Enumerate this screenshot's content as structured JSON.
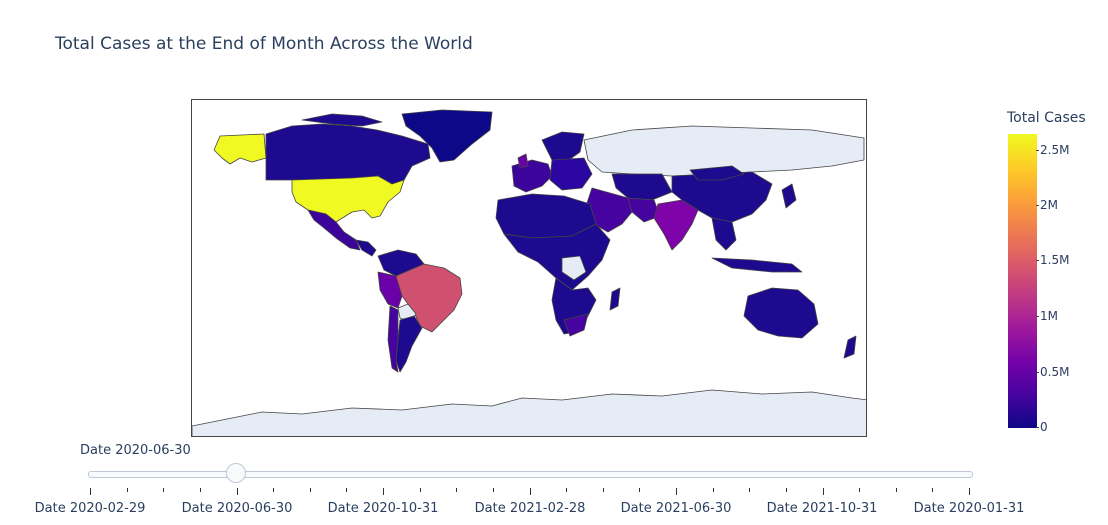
{
  "chart": {
    "title": "Total Cases at the End of Month Across the World",
    "colorbar_title": "Total Cases",
    "colorbar_ticks": [
      "2.5M",
      "2M",
      "1.5M",
      "1M",
      "0.5M",
      "0"
    ],
    "colorscale": [
      "#0d0887",
      "#46039f",
      "#7201a8",
      "#9c179e",
      "#bd3786",
      "#d8576b",
      "#ed7953",
      "#fb9f3a",
      "#fdca26",
      "#f0f921"
    ],
    "missing_color": "#e5ecf6",
    "border_color": "#444444"
  },
  "slider": {
    "current_label": "Date 2020-06-30",
    "labels": [
      "Date 2020-02-29",
      "Date 2020-06-30",
      "Date 2020-10-31",
      "Date 2021-02-28",
      "Date 2021-06-30",
      "Date 2021-10-31",
      "Date 2020-01-31"
    ]
  },
  "chart_data": {
    "type": "choropleth",
    "title": "Total Cases at the End of Month Across the World",
    "colorbar": {
      "title": "Total Cases",
      "range": [
        0,
        2650000
      ]
    },
    "frame": "Date 2020-06-30",
    "regions": [
      {
        "name": "USA",
        "value": 2640000
      },
      {
        "name": "Alaska",
        "value": 2640000
      },
      {
        "name": "Brazil",
        "value": 1400000
      },
      {
        "name": "India",
        "value": 580000
      },
      {
        "name": "Peru",
        "value": 280000
      },
      {
        "name": "Chile",
        "value": 280000
      },
      {
        "name": "Mexico",
        "value": 230000
      },
      {
        "name": "United Kingdom",
        "value": 310000
      },
      {
        "name": "Spain",
        "value": 250000
      },
      {
        "name": "Italy",
        "value": 240000
      },
      {
        "name": "Iran",
        "value": 230000
      },
      {
        "name": "Pakistan",
        "value": 210000
      },
      {
        "name": "South Africa",
        "value": 150000
      },
      {
        "name": "Canada",
        "value": 104000
      },
      {
        "name": "Saudi Arabia",
        "value": 190000
      },
      {
        "name": "Russia",
        "value": null
      },
      {
        "name": "Greenland",
        "value": 13
      },
      {
        "name": "China",
        "value": 85000
      },
      {
        "name": "Australia",
        "value": 8000
      },
      {
        "name": "Antarctica",
        "value": null
      }
    ]
  }
}
